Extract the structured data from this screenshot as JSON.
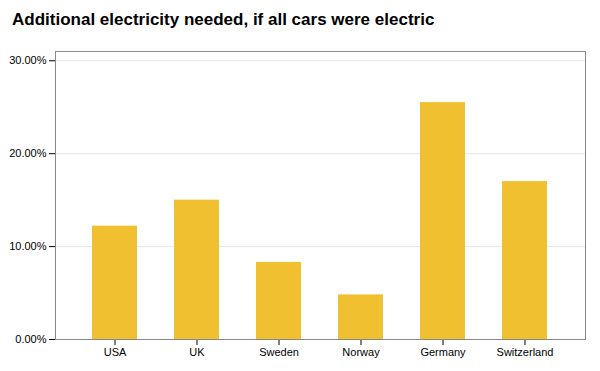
{
  "chart_data": {
    "type": "bar",
    "title": "Additional electricity needed, if all cars were electric",
    "categories": [
      "USA",
      "UK",
      "Sweden",
      "Norway",
      "Germany",
      "Switzerland"
    ],
    "values": [
      0.122,
      0.15,
      0.083,
      0.048,
      0.255,
      0.17
    ],
    "color": "#F0C030",
    "ylim": [
      0,
      0.31
    ],
    "yticks": [
      {
        "value": 0.0,
        "label": "0.00%"
      },
      {
        "value": 0.1,
        "label": "10.00%"
      },
      {
        "value": 0.2,
        "label": "20.00%"
      },
      {
        "value": 0.3,
        "label": "30.00%"
      }
    ],
    "grid": true
  }
}
